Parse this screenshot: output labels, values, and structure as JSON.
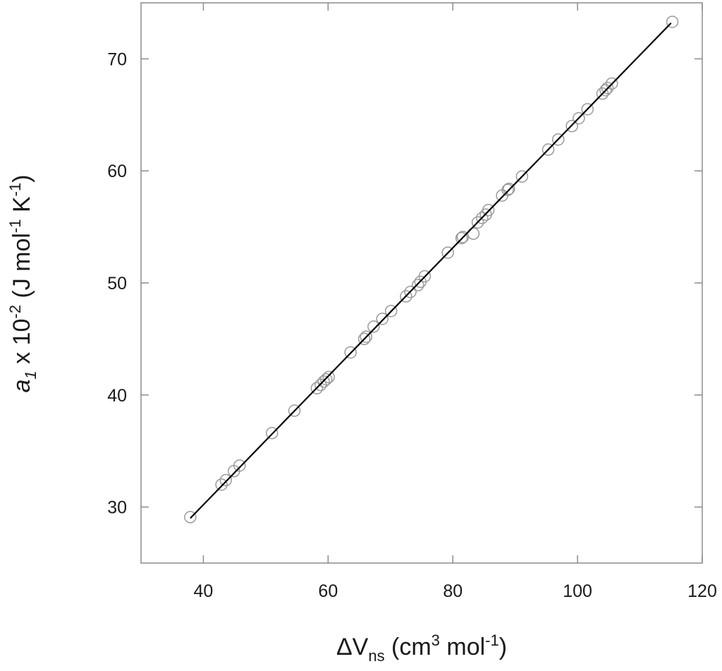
{
  "chart_data": {
    "type": "scatter",
    "title": "",
    "xlabel": {
      "prefix": "ΔV",
      "subscript": "ns",
      "rest1": " (cm",
      "sup1": "3",
      "rest2": " mol",
      "sup2": "-1",
      "rest3": ")"
    },
    "ylabel": {
      "prefix": "a",
      "subscript": "1",
      "rest1": " x 10",
      "sup1": "-2",
      "rest2": " (J mol",
      "sup2": "-1",
      "rest3": " K",
      "sup3": "-1",
      "rest4": ")"
    },
    "xlim": [
      30,
      120
    ],
    "ylim": [
      25,
      75
    ],
    "xticks": [
      40,
      60,
      80,
      100,
      120
    ],
    "yticks": [
      30,
      40,
      50,
      60,
      70
    ],
    "grid": false,
    "marker": "open-circle",
    "colors": {
      "marker": "#9a9a9a",
      "line": "#000000",
      "axes": "#8c8c8c"
    },
    "series": [
      {
        "points": [
          [
            37.9,
            29.1
          ],
          [
            42.9,
            32.0
          ],
          [
            43.6,
            32.4
          ],
          [
            44.9,
            33.2
          ],
          [
            45.8,
            33.7
          ],
          [
            51.0,
            36.6
          ],
          [
            54.6,
            38.6
          ],
          [
            58.2,
            40.6
          ],
          [
            58.8,
            40.9
          ],
          [
            59.3,
            41.2
          ],
          [
            59.7,
            41.4
          ],
          [
            60.1,
            41.6
          ],
          [
            63.6,
            43.8
          ],
          [
            65.8,
            45.0
          ],
          [
            66.1,
            45.2
          ],
          [
            67.3,
            46.1
          ],
          [
            68.7,
            46.8
          ],
          [
            70.1,
            47.5
          ],
          [
            72.5,
            48.8
          ],
          [
            73.2,
            49.2
          ],
          [
            74.4,
            49.8
          ],
          [
            74.8,
            50.1
          ],
          [
            75.5,
            50.6
          ],
          [
            79.2,
            52.7
          ],
          [
            81.4,
            54.0
          ],
          [
            81.6,
            54.1
          ],
          [
            83.3,
            54.4
          ],
          [
            84.0,
            55.4
          ],
          [
            84.7,
            55.8
          ],
          [
            85.3,
            56.1
          ],
          [
            85.7,
            56.5
          ],
          [
            87.9,
            57.8
          ],
          [
            88.8,
            58.3
          ],
          [
            89.0,
            58.4
          ],
          [
            91.1,
            59.5
          ],
          [
            95.3,
            61.9
          ],
          [
            96.9,
            62.8
          ],
          [
            99.1,
            64.0
          ],
          [
            100.2,
            64.7
          ],
          [
            101.6,
            65.5
          ],
          [
            104.0,
            66.9
          ],
          [
            104.5,
            67.2
          ],
          [
            104.8,
            67.4
          ],
          [
            105.5,
            67.8
          ],
          [
            115.2,
            73.3
          ]
        ]
      }
    ],
    "fit_line": [
      [
        37.9,
        29.0
      ],
      [
        115.0,
        73.2
      ]
    ]
  }
}
